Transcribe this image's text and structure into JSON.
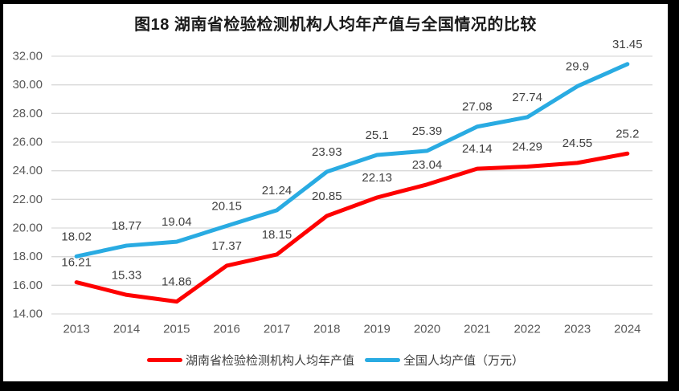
{
  "title": "图18 湖南省检验检测机构人均年产值与全国情况的比较",
  "chart_data": {
    "type": "line",
    "title": "图18 湖南省检验检测机构人均年产值与全国情况的比较",
    "categories": [
      "2013",
      "2014",
      "2015",
      "2016",
      "2017",
      "2018",
      "2019",
      "2020",
      "2021",
      "2022",
      "2023",
      "2024"
    ],
    "series": [
      {
        "name": "湖南省检验检测机构人均年产值",
        "color": "#fe0000",
        "values": [
          16.21,
          15.33,
          14.86,
          17.37,
          18.15,
          20.85,
          22.13,
          23.04,
          24.14,
          24.29,
          24.55,
          25.2
        ]
      },
      {
        "name": "全国人均产值（万元）",
        "color": "#29abe2",
        "values": [
          18.02,
          18.77,
          19.04,
          20.15,
          21.24,
          23.93,
          25.1,
          25.39,
          27.08,
          27.74,
          29.9,
          31.45
        ]
      }
    ],
    "xlabel": "",
    "ylabel": "",
    "ylim": [
      14,
      32
    ],
    "ytick_step": 2,
    "ytick_format": "2dp",
    "grid": true,
    "data_labels": true,
    "legend_position": "bottom"
  },
  "colors": {
    "frame": "#000000",
    "chart_background": "#ffffff",
    "gridline": "#d9d9d9",
    "tick_label": "#595959",
    "data_label": "#404040",
    "title_text": "#1a1a1a"
  }
}
